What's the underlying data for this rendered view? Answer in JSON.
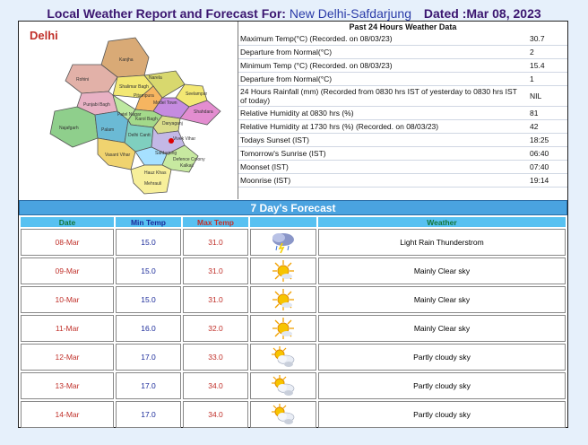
{
  "header": {
    "prefix": "Local Weather Report and Forecast For:",
    "location": "New Delhi-Safdarjung",
    "dated": "Dated :Mar 08, 2023"
  },
  "map": {
    "region_label": "Delhi",
    "districts": [
      "Narela",
      "Kanjha",
      "Rohini",
      "Shalimar Bagh",
      "Pitampura",
      "Model Town",
      "Seelampur",
      "Shahdara",
      "Punjabi Bagh",
      "Patel Nagar",
      "Karol Bagh",
      "Daryaganj",
      "Najafgarh",
      "Palam",
      "Delhi Cantt",
      "Vivek Vihar",
      "Safdarjung",
      "Defence Colony",
      "Kalkaji",
      "Vasant Vihar",
      "Mehrauli",
      "Hauz Khas"
    ]
  },
  "past24": {
    "title": "Past 24 Hours Weather Data",
    "rows": [
      {
        "label": "Maximum Temp(°C) (Recorded. on 08/03/23)",
        "value": "30.7"
      },
      {
        "label": "Departure from Normal(°C)",
        "value": "2"
      },
      {
        "label": "Minimum Temp (°C) (Recorded. on 08/03/23)",
        "value": "15.4"
      },
      {
        "label": "Departure from Normal(°C)",
        "value": "1"
      },
      {
        "label": "24 Hours Rainfall (mm) (Recorded from 0830 hrs IST of yesterday to 0830 hrs IST of today)",
        "value": "NIL"
      },
      {
        "label": "Relative Humidity at 0830 hrs (%)",
        "value": "81"
      },
      {
        "label": "Relative Humidity at 1730 hrs (%) (Recorded. on 08/03/23)",
        "value": "42"
      },
      {
        "label": "Todays Sunset (IST)",
        "value": "18:25"
      },
      {
        "label": "Tomorrow's Sunrise (IST)",
        "value": "06:40"
      },
      {
        "label": "Moonset (IST)",
        "value": "07:40"
      },
      {
        "label": "Moonrise (IST)",
        "value": "19:14"
      }
    ]
  },
  "forecast": {
    "title": "7 Day's Forecast",
    "columns": {
      "date": "Date",
      "min": "Min Temp",
      "max": "Max Temp",
      "weather": "Weather"
    },
    "rows": [
      {
        "date": "08-Mar",
        "min": "15.0",
        "max": "31.0",
        "icon": "rain-thunder-icon",
        "weather": "Light Rain Thunderstrom"
      },
      {
        "date": "09-Mar",
        "min": "15.0",
        "max": "31.0",
        "icon": "clear-sky-icon",
        "weather": "Mainly Clear sky"
      },
      {
        "date": "10-Mar",
        "min": "15.0",
        "max": "31.0",
        "icon": "clear-sky-icon",
        "weather": "Mainly Clear sky"
      },
      {
        "date": "11-Mar",
        "min": "16.0",
        "max": "32.0",
        "icon": "clear-sky-icon",
        "weather": "Mainly Clear sky"
      },
      {
        "date": "12-Mar",
        "min": "17.0",
        "max": "33.0",
        "icon": "partly-cloudy-icon",
        "weather": "Partly cloudy sky"
      },
      {
        "date": "13-Mar",
        "min": "17.0",
        "max": "34.0",
        "icon": "partly-cloudy-icon",
        "weather": "Partly cloudy sky"
      },
      {
        "date": "14-Mar",
        "min": "17.0",
        "max": "34.0",
        "icon": "partly-cloudy-icon",
        "weather": "Partly cloudy sky"
      }
    ]
  }
}
